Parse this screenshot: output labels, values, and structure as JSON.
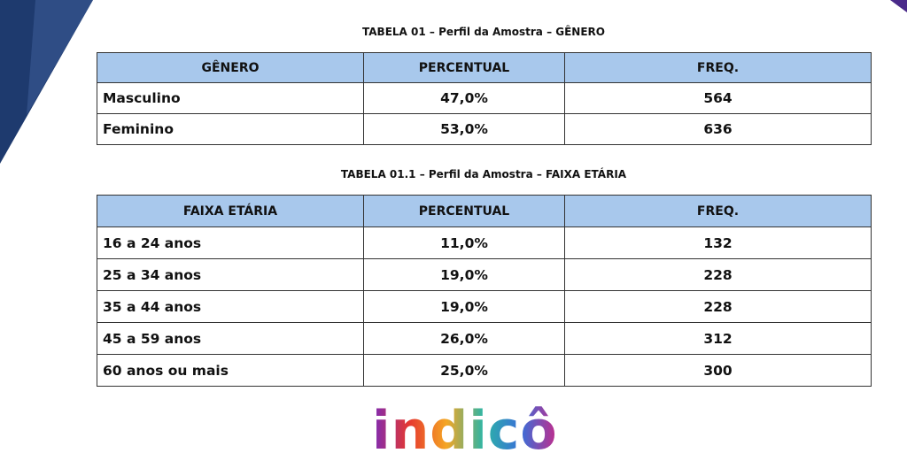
{
  "tables": [
    {
      "title": "TABELA 01 – Perfil da Amostra – GÊNERO",
      "header": [
        "GÊNERO",
        "PERCENTUAL",
        "FREQ."
      ],
      "rows": [
        [
          "Masculino",
          "47,0%",
          564
        ],
        [
          "Feminino",
          "53,0%",
          636
        ]
      ]
    },
    {
      "title": "TABELA 01.1 – Perfil da Amostra – FAIXA ETÁRIA",
      "header": [
        "FAIXA ETÁRIA",
        "PERCENTUAL",
        "FREQ."
      ],
      "rows": [
        [
          "16 a 24 anos",
          "11,0%",
          132
        ],
        [
          "25 a 34 anos",
          "19,0%",
          228
        ],
        [
          "35 a 44 anos",
          "19,0%",
          228
        ],
        [
          "45 a 59 anos",
          "26,0%",
          312
        ],
        [
          "60 anos ou mais",
          "25,0%",
          300
        ]
      ]
    }
  ],
  "logo": "indicô"
}
